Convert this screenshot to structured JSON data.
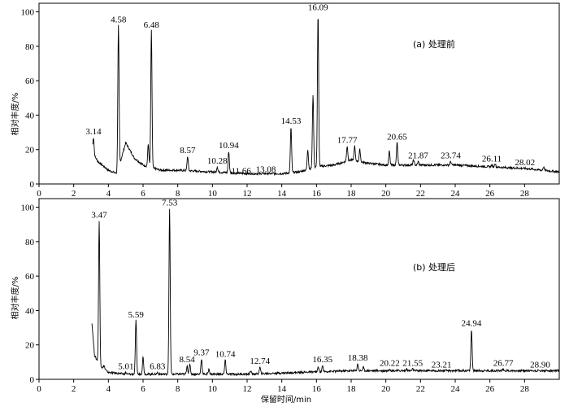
{
  "chart_data": [
    {
      "type": "line",
      "panel": "top",
      "title": "(a) 处理前",
      "xlabel": "",
      "ylabel": "相对丰度/%",
      "xlim": [
        0,
        30
      ],
      "ylim": [
        0,
        105
      ],
      "xticks": [
        0,
        2,
        4,
        6,
        8,
        10,
        12,
        14,
        16,
        18,
        20,
        22,
        24,
        26,
        28
      ],
      "yticks": [
        0,
        20,
        40,
        60,
        80,
        100
      ],
      "baseline": [
        [
          3.1,
          18
        ],
        [
          3.4,
          13
        ],
        [
          4.0,
          8
        ],
        [
          4.5,
          6
        ],
        [
          5.0,
          24
        ],
        [
          5.5,
          15
        ],
        [
          6.0,
          11
        ],
        [
          7.0,
          8
        ],
        [
          8.0,
          8
        ],
        [
          10.0,
          7
        ],
        [
          12.0,
          6
        ],
        [
          14.0,
          6
        ],
        [
          15.0,
          7
        ],
        [
          16.0,
          10
        ],
        [
          17.0,
          11
        ],
        [
          18.0,
          14
        ],
        [
          19.0,
          12
        ],
        [
          20.0,
          11
        ],
        [
          21.0,
          11
        ],
        [
          22.0,
          11
        ],
        [
          24.0,
          11
        ],
        [
          26.0,
          10
        ],
        [
          28.0,
          9
        ],
        [
          30.0,
          7
        ]
      ],
      "peaks": [
        {
          "rt": "3.14",
          "x": 3.14,
          "y": 27
        },
        {
          "rt": "4.58",
          "x": 4.58,
          "y": 92
        },
        {
          "rt": "6.48",
          "x": 6.48,
          "y": 89
        },
        {
          "rt": "8.57",
          "x": 8.57,
          "y": 16
        },
        {
          "rt": "10.28",
          "x": 10.28,
          "y": 10
        },
        {
          "rt": "10.94",
          "x": 10.94,
          "y": 19
        },
        {
          "rt": "11.66",
          "x": 11.66,
          "y": 4
        },
        {
          "rt": "13.08",
          "x": 13.08,
          "y": 5
        },
        {
          "rt": "14.53",
          "x": 14.53,
          "y": 33
        },
        {
          "rt": "16.09",
          "x": 16.09,
          "y": 99
        },
        {
          "rt": "17.77",
          "x": 17.77,
          "y": 22
        },
        {
          "rt": "20.65",
          "x": 20.65,
          "y": 24
        },
        {
          "rt": "21.87",
          "x": 21.87,
          "y": 13
        },
        {
          "rt": "23.74",
          "x": 23.74,
          "y": 13
        },
        {
          "rt": "26.11",
          "x": 26.11,
          "y": 11
        },
        {
          "rt": "28.02",
          "x": 28.02,
          "y": 9
        }
      ],
      "minor_peaks": [
        [
          6.3,
          23
        ],
        [
          15.8,
          52
        ],
        [
          15.5,
          20
        ],
        [
          18.2,
          22
        ],
        [
          18.5,
          20
        ],
        [
          20.2,
          19
        ],
        [
          21.6,
          14
        ],
        [
          26.3,
          12
        ],
        [
          29.1,
          10
        ]
      ]
    },
    {
      "type": "line",
      "panel": "bottom",
      "title": "(b) 处理后",
      "xlabel": "保留时间/min",
      "ylabel": "相对丰度/%",
      "xlim": [
        0,
        30
      ],
      "ylim": [
        0,
        105
      ],
      "xticks": [
        0,
        2,
        4,
        6,
        8,
        10,
        12,
        14,
        16,
        18,
        20,
        22,
        24,
        26,
        28
      ],
      "yticks": [
        0,
        20,
        40,
        60,
        80,
        100
      ],
      "baseline": [
        [
          3.05,
          33
        ],
        [
          3.2,
          14
        ],
        [
          3.5,
          8
        ],
        [
          4.0,
          4
        ],
        [
          5.0,
          3
        ],
        [
          7.0,
          3
        ],
        [
          9.0,
          3
        ],
        [
          12.0,
          3
        ],
        [
          15.0,
          4
        ],
        [
          18.0,
          5
        ],
        [
          22.0,
          5
        ],
        [
          26.0,
          5
        ],
        [
          30.0,
          5
        ]
      ],
      "peaks": [
        {
          "rt": "3.47",
          "x": 3.47,
          "y": 92
        },
        {
          "rt": "5.01",
          "x": 5.01,
          "y": 4
        },
        {
          "rt": "5.59",
          "x": 5.59,
          "y": 34
        },
        {
          "rt": "6.83",
          "x": 6.83,
          "y": 4
        },
        {
          "rt": "7.53",
          "x": 7.53,
          "y": 99
        },
        {
          "rt": "8.54",
          "x": 8.54,
          "y": 8
        },
        {
          "rt": "9.37",
          "x": 9.37,
          "y": 12
        },
        {
          "rt": "10.74",
          "x": 10.74,
          "y": 11
        },
        {
          "rt": "12.74",
          "x": 12.74,
          "y": 7
        },
        {
          "rt": "16.35",
          "x": 16.35,
          "y": 8
        },
        {
          "rt": "18.38",
          "x": 18.38,
          "y": 9
        },
        {
          "rt": "20.22",
          "x": 20.22,
          "y": 6
        },
        {
          "rt": "21.55",
          "x": 21.55,
          "y": 6
        },
        {
          "rt": "23.21",
          "x": 23.21,
          "y": 5
        },
        {
          "rt": "24.94",
          "x": 24.94,
          "y": 29
        },
        {
          "rt": "26.77",
          "x": 26.77,
          "y": 6
        },
        {
          "rt": "28.90",
          "x": 28.9,
          "y": 5
        }
      ],
      "minor_peaks": [
        [
          3.75,
          8
        ],
        [
          6.0,
          13
        ],
        [
          8.7,
          9
        ],
        [
          9.8,
          6
        ],
        [
          12.2,
          5
        ],
        [
          16.1,
          7
        ],
        [
          18.7,
          7
        ],
        [
          21.2,
          6
        ]
      ]
    }
  ]
}
